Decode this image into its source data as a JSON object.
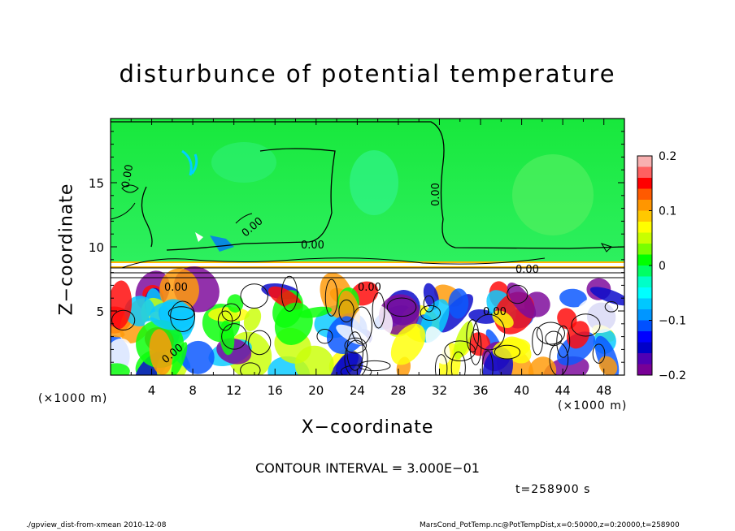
{
  "chart_data": {
    "type": "heatmap",
    "title": "disturbunce of potential temperature",
    "xlabel": "X−coordinate",
    "ylabel": "Z−coordinate",
    "x_unit_left": "(×1000 m)",
    "x_unit_right": "(×1000 m)",
    "xlim": [
      0,
      50
    ],
    "ylim": [
      0,
      20
    ],
    "x_ticks": [
      "4",
      "8",
      "12",
      "16",
      "20",
      "24",
      "28",
      "32",
      "36",
      "40",
      "44",
      "48"
    ],
    "y_ticks": [
      "5",
      "10",
      "15"
    ],
    "colorbar": {
      "range": [
        -0.2,
        0.2
      ],
      "tick_labels": [
        "0.2",
        "0.1",
        "0",
        "−0.1",
        "−0.2"
      ],
      "colors": [
        "#f8b0b0",
        "#ff6060",
        "#ff0000",
        "#ff5a00",
        "#ff9600",
        "#ffc800",
        "#ffff00",
        "#c8ff00",
        "#78ff00",
        "#00ff00",
        "#00ff64",
        "#00ffc8",
        "#00ffff",
        "#00c8ff",
        "#0096ff",
        "#0050ff",
        "#0000ff",
        "#0000c8",
        "#5000b4",
        "#780096"
      ]
    },
    "contour_labels": [
      "0.00",
      "0.00",
      "0.00",
      "0.00",
      "0.00",
      "0.00",
      "0.00",
      "0.00",
      "0.00"
    ],
    "grid": false
  },
  "annotations": {
    "contour_interval": "CONTOUR INTERVAL = 3.000E−01",
    "time": "t=258900 s",
    "footer_left": "./gpview_dist-from-xmean   2010-12-08",
    "footer_right": "MarsCond_PotTemp.nc@PotTempDist,x=0:50000,z=0:20000,t=258900"
  }
}
